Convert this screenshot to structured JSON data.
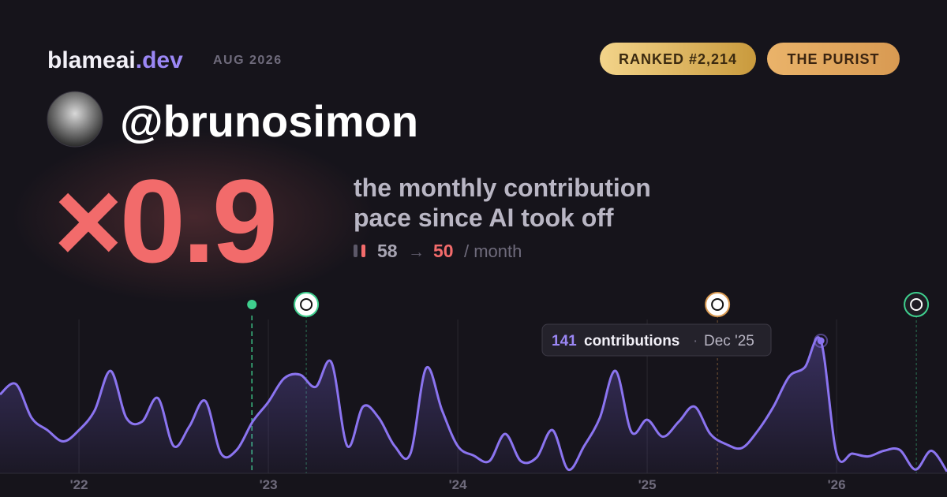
{
  "brand": {
    "name": "blameai",
    "tld": ".dev",
    "date": "AUG 2026"
  },
  "badges": [
    "RANKED #2,214",
    "THE PURIST"
  ],
  "handle": "@brunosimon",
  "multiplier": "×0.9",
  "description": [
    "the monthly contribution",
    "pace since AI took off"
  ],
  "pace": {
    "before": "58",
    "arrow": "→",
    "after": "50",
    "unit": "/ month"
  },
  "tooltip": {
    "value": "141",
    "label": "contributions",
    "separator": "·",
    "date": "Dec '25"
  },
  "chart_data": {
    "type": "line",
    "x": [
      2021.583,
      2021.667,
      2021.75,
      2021.833,
      2021.917,
      2022,
      2022.083,
      2022.167,
      2022.25,
      2022.333,
      2022.417,
      2022.5,
      2022.583,
      2022.667,
      2022.75,
      2022.833,
      2022.917,
      2023,
      2023.083,
      2023.167,
      2023.25,
      2023.333,
      2023.417,
      2023.5,
      2023.583,
      2023.667,
      2023.75,
      2023.833,
      2023.917,
      2024,
      2024.083,
      2024.167,
      2024.25,
      2024.333,
      2024.417,
      2024.5,
      2024.583,
      2024.667,
      2024.75,
      2024.833,
      2024.917,
      2025,
      2025.083,
      2025.167,
      2025.25,
      2025.333,
      2025.417,
      2025.5,
      2025.583,
      2025.667,
      2025.75,
      2025.833,
      2025.917,
      2026,
      2026.083,
      2026.167,
      2026.25,
      2026.333,
      2026.417,
      2026.5,
      2026.583
    ],
    "series": [
      {
        "color": "#8b74f0",
        "values": [
          84,
          95,
          59,
          46,
          34,
          46,
          67,
          109,
          59,
          55,
          80,
          29,
          50,
          77,
          21,
          25,
          55,
          76,
          101,
          105,
          92,
          118,
          29,
          71,
          59,
          29,
          21,
          112,
          67,
          29,
          19,
          13,
          42,
          13,
          17,
          46,
          4,
          29,
          59,
          109,
          44,
          57,
          39,
          55,
          71,
          42,
          31,
          27,
          45,
          71,
          103,
          113,
          141,
          21,
          21,
          18,
          24,
          25,
          4,
          24,
          2
        ]
      }
    ],
    "highlight": 52,
    "markers": [
      2022.913,
      2023.2,
      2025.371,
      2026.421
    ],
    "xlim": [
      2021.583,
      2026.583
    ],
    "xticks": [
      {
        "value": 2022,
        "label": "'22"
      },
      {
        "value": 2023,
        "label": "'23"
      },
      {
        "value": 2024,
        "label": "'24"
      },
      {
        "value": 2025,
        "label": "'25"
      },
      {
        "value": 2026,
        "label": "'26"
      }
    ],
    "ylim": [
      0,
      150
    ],
    "grid": true
  }
}
